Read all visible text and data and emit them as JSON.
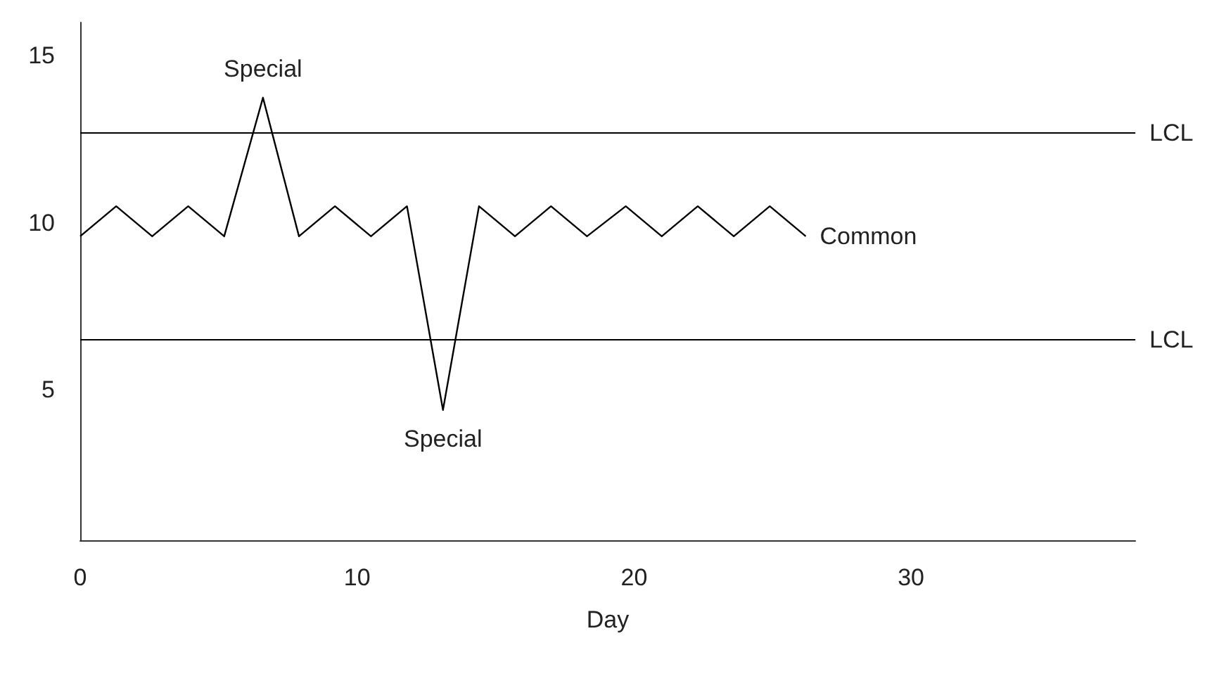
{
  "chart_data": {
    "type": "line",
    "xlabel": "Day",
    "x": [
      0,
      1.3,
      2.6,
      3.9,
      5.2,
      6.6,
      7.9,
      9.2,
      10.5,
      11.8,
      13.1,
      14.4,
      15.7,
      17.0,
      18.3,
      19.7,
      21.0,
      22.3,
      23.6,
      24.9,
      26.2
    ],
    "series": [
      {
        "color": "#000000",
        "values": [
          9.6,
          10.5,
          9.6,
          10.5,
          9.6,
          13.75,
          9.6,
          10.5,
          9.6,
          10.5,
          4.4,
          10.5,
          9.6,
          10.5,
          9.6,
          10.5,
          9.6,
          10.5,
          9.6,
          10.5,
          9.6
        ]
      }
    ],
    "xlim": [
      0,
      38.1
    ],
    "xticks": [
      0,
      10,
      20,
      30
    ],
    "ylim": [
      0.5,
      16
    ],
    "yticks": [
      5,
      10,
      15
    ],
    "marker": "none",
    "line_style": "solid",
    "ref_lines": [
      {
        "axis": "y",
        "value": 12.7,
        "label": "LCL",
        "color": "#000000"
      },
      {
        "axis": "y",
        "value": 6.5,
        "label": "LCL",
        "color": "#000000"
      }
    ],
    "annotations": [
      {
        "text": "Special",
        "x": 6.6,
        "y": 13.75
      },
      {
        "text": "Special",
        "x": 13.1,
        "y": 4.4
      },
      {
        "text": "Common",
        "x": 26.2,
        "y": 9.6
      }
    ]
  }
}
